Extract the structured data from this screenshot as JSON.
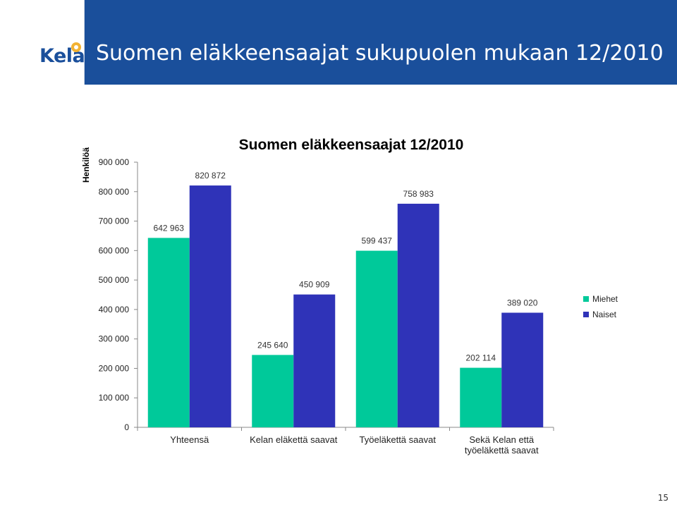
{
  "header": {
    "logo_text": "Kela",
    "title": "Suomen eläkkeensaajat sukupuolen mukaan 12/2010"
  },
  "colors": {
    "header_bg": "#1a4f9b",
    "miehet": "#00c99a",
    "naiset": "#2f33b8",
    "logo_accent": "#f2b233"
  },
  "chart_data": {
    "type": "bar",
    "title": "Suomen eläkkeensaajat 12/2010",
    "ylabel": "Henkilöä",
    "xlabel": "",
    "ylim": [
      0,
      900000
    ],
    "yticks": [
      0,
      100000,
      200000,
      300000,
      400000,
      500000,
      600000,
      700000,
      800000,
      900000
    ],
    "ytick_labels": [
      "0",
      "100 000",
      "200 000",
      "300 000",
      "400 000",
      "500 000",
      "600 000",
      "700 000",
      "800 000",
      "900 000"
    ],
    "categories": [
      [
        "Yhteensä"
      ],
      [
        "Kelan eläkettä saavat"
      ],
      [
        "Työeläkettä saavat"
      ],
      [
        "Sekä Kelan että",
        "työeläkettä saavat"
      ]
    ],
    "series": [
      {
        "name": "Miehet",
        "values": [
          642963,
          245640,
          599437,
          202114
        ],
        "labels": [
          "642 963",
          "245 640",
          "599 437",
          "202 114"
        ]
      },
      {
        "name": "Naiset",
        "values": [
          820872,
          450909,
          758983,
          389020
        ],
        "labels": [
          "820 872",
          "450 909",
          "758 983",
          "389 020"
        ]
      }
    ],
    "legend_position": "right",
    "grid": false
  },
  "footer": {
    "page_number": "15"
  }
}
